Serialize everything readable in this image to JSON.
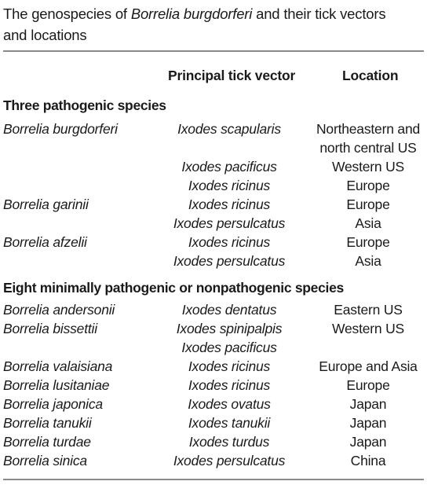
{
  "caption": {
    "prefix": "The genospecies of ",
    "italic": "Borrelia burgdorferi",
    "suffix": " and their tick vectors and locations"
  },
  "columns": {
    "vector": "Principal tick vector",
    "location": "Location"
  },
  "sections": [
    {
      "title": "Three pathogenic species",
      "rows": [
        {
          "species": "Borrelia burgdorferi",
          "vector": "Ixodes scapularis",
          "location": "Northeastern and"
        },
        {
          "species": "",
          "vector": "",
          "location": "north central US"
        },
        {
          "species": "",
          "vector": "Ixodes pacificus",
          "location": "Western US"
        },
        {
          "species": "",
          "vector": "Ixodes ricinus",
          "location": "Europe"
        },
        {
          "species": "Borrelia garinii",
          "vector": "Ixodes ricinus",
          "location": "Europe"
        },
        {
          "species": "",
          "vector": "Ixodes persulcatus",
          "location": "Asia"
        },
        {
          "species": "Borrelia afzelii",
          "vector": "Ixodes ricinus",
          "location": "Europe"
        },
        {
          "species": "",
          "vector": "Ixodes persulcatus",
          "location": "Asia"
        }
      ]
    },
    {
      "title": "Eight minimally pathogenic or nonpathogenic species",
      "rows": [
        {
          "species": "Borrelia andersonii",
          "vector": "Ixodes dentatus",
          "location": "Eastern US"
        },
        {
          "species": "Borrelia bissettii",
          "vector": "Ixodes spinipalpis",
          "location": "Western US"
        },
        {
          "species": "",
          "vector": "Ixodes pacificus",
          "location": ""
        },
        {
          "species": "Borrelia valaisiana",
          "vector": "Ixodes ricinus",
          "location": "Europe and Asia"
        },
        {
          "species": "Borrelia lusitaniae",
          "vector": "Ixodes ricinus",
          "location": "Europe"
        },
        {
          "species": "Borrelia japonica",
          "vector": "Ixodes ovatus",
          "location": "Japan"
        },
        {
          "species": "Borrelia tanukii",
          "vector": "Ixodes tanukii",
          "location": "Japan"
        },
        {
          "species": "Borrelia turdae",
          "vector": "Ixodes turdus",
          "location": "Japan"
        },
        {
          "species": "Borrelia sinica",
          "vector": "Ixodes persulcatus",
          "location": "China"
        }
      ]
    }
  ]
}
